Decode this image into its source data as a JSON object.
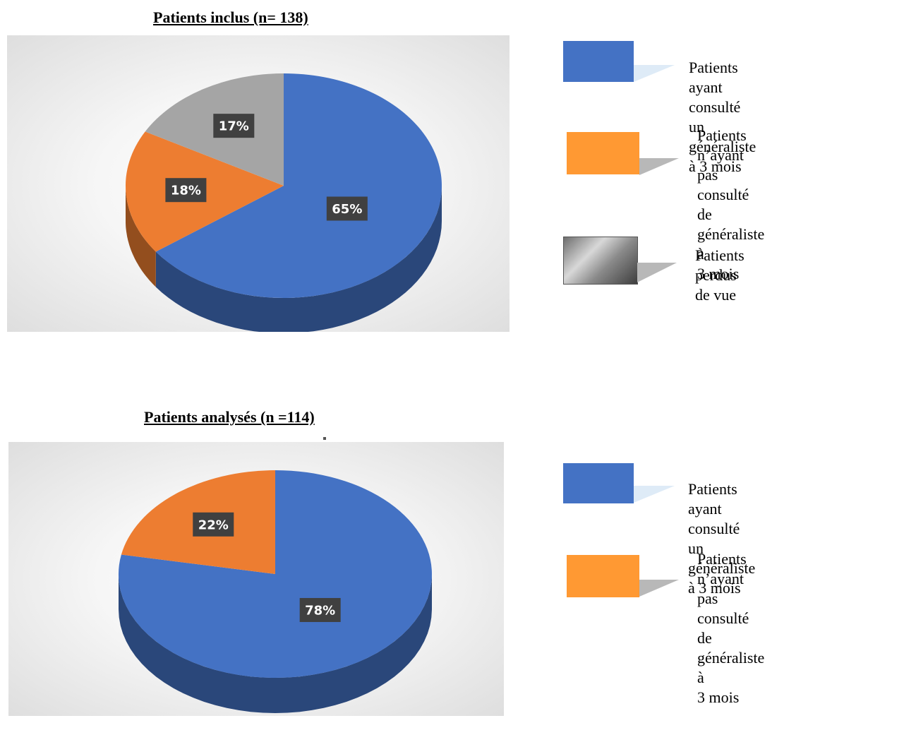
{
  "chart_data": [
    {
      "type": "pie",
      "title": "Patients inclus (n= 138)",
      "categories": [
        "Patients ayant consulté un généraliste à 3 mois",
        "Patients n’ayant pas consulté de généraliste à 3 mois",
        "Patients perdus de vue"
      ],
      "values": [
        65,
        18,
        17
      ],
      "value_labels": [
        "65%",
        "18%",
        "17%"
      ],
      "colors": [
        "#4472c4",
        "#ed7d31",
        "#a5a5a5"
      ],
      "legend_position": "right",
      "legend": [
        {
          "label": " Patients ayant consulté\nun généraliste à 3 mois",
          "color": "#4472c4"
        },
        {
          "label": "Patients n’ayant pas\nconsulté de généraliste à\n3 mois",
          "color": "#ed7d31"
        },
        {
          "label": "Patients perdus de vue",
          "color": "#a5a5a5"
        }
      ]
    },
    {
      "type": "pie",
      "title": "Patients analysés (n =114)",
      "categories": [
        "Patients ayant consulté un généraliste à 3 mois",
        "Patients n’ayant pas consulté de généraliste à 3 mois"
      ],
      "values": [
        78,
        22
      ],
      "value_labels": [
        "78%",
        "22%"
      ],
      "colors": [
        "#4472c4",
        "#ed7d31"
      ],
      "legend_position": "right",
      "legend": [
        {
          "label": "Patients ayant consulté\nun généraliste à 3 mois",
          "color": "#4472c4"
        },
        {
          "label": "Patients n’ayant pas\nconsulté de généraliste à\n3 mois",
          "color": "#ed7d31"
        }
      ]
    }
  ]
}
